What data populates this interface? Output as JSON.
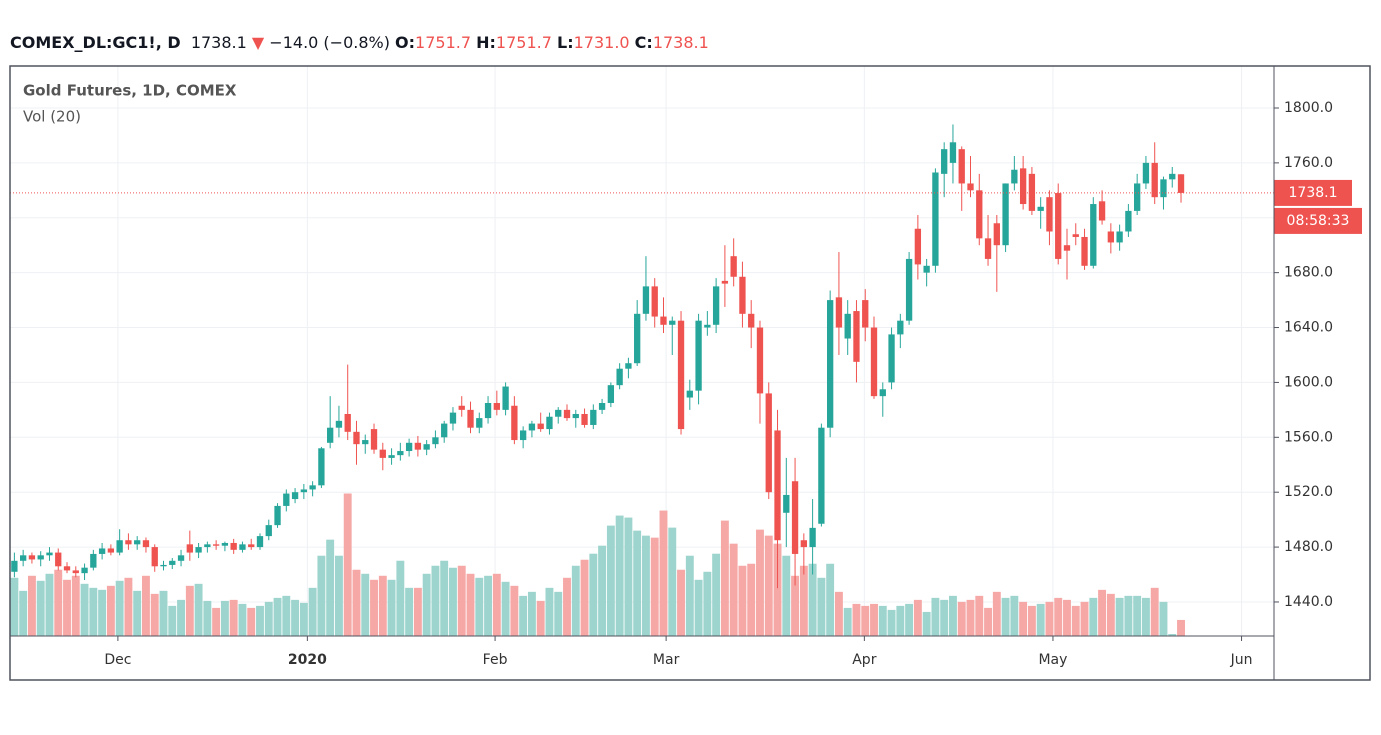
{
  "header": {
    "symbol": "COMEX_DL:GC1!, D",
    "last": "1738.1",
    "arrow": "▼",
    "change": "−14.0 (−0.8%)",
    "ohlc": [
      {
        "label": "O:",
        "value": "1751.7"
      },
      {
        "label": "H:",
        "value": "1751.7"
      },
      {
        "label": "L:",
        "value": "1731.0"
      },
      {
        "label": "C:",
        "value": "1738.1"
      }
    ]
  },
  "chart_data": {
    "type": "candlestick",
    "title": "Gold Futures, 1D, COMEX",
    "volume_label": "Vol (20)",
    "up_color": "#26a69a",
    "down_color": "#ef5350",
    "volume_up_color": "#9dd4ce",
    "volume_down_color": "#f5a8a6",
    "grid": true,
    "last_price": 1738.1,
    "countdown": "08:58:33",
    "xlim": [
      -0.5,
      143.6
    ],
    "ylim": [
      1415.2,
      1830.6
    ],
    "xticks": [
      {
        "value": 11.8,
        "label": "Dec"
      },
      {
        "value": 33.4,
        "label": "2020"
      },
      {
        "value": 54.8,
        "label": "Feb"
      },
      {
        "value": 74.3,
        "label": "Mar"
      },
      {
        "value": 96.9,
        "label": "Apr"
      },
      {
        "value": 118.4,
        "label": "May"
      },
      {
        "value": 139.9,
        "label": "Jun"
      }
    ],
    "yticks": [
      {
        "value": 1440,
        "label": "1440.0"
      },
      {
        "value": 1480,
        "label": "1480.0"
      },
      {
        "value": 1520,
        "label": "1520.0"
      },
      {
        "value": 1560,
        "label": "1560.0"
      },
      {
        "value": 1600,
        "label": "1600.0"
      },
      {
        "value": 1640,
        "label": "1640.0"
      },
      {
        "value": 1680,
        "label": "1680.0"
      },
      {
        "value": 1720,
        "label": "1720.0"
      },
      {
        "value": 1760,
        "label": "1760.0"
      },
      {
        "value": 1800,
        "label": "1800.0"
      }
    ],
    "open": [
      1462,
      1470,
      1474,
      1471,
      1474,
      1476,
      1466,
      1463,
      1461,
      1465,
      1475,
      1479,
      1476,
      1485,
      1482,
      1485,
      1480,
      1466,
      1467,
      1470,
      1482,
      1476,
      1480,
      1482,
      1481,
      1483,
      1478,
      1482,
      1480,
      1488,
      1496,
      1510,
      1515,
      1520,
      1522,
      1525,
      1556,
      1567,
      1577,
      1564,
      1555,
      1566,
      1551,
      1545,
      1547,
      1550,
      1556,
      1551,
      1555,
      1560,
      1570,
      1583,
      1580,
      1567,
      1574,
      1585,
      1580,
      1583,
      1558,
      1565,
      1570,
      1566,
      1575,
      1580,
      1574,
      1577,
      1569,
      1580,
      1585,
      1598,
      1610,
      1614,
      1650,
      1670,
      1648,
      1642,
      1645,
      1589,
      1594,
      1640,
      1642,
      1674,
      1692,
      1677,
      1650,
      1640,
      1592,
      1565,
      1505,
      1528,
      1485,
      1480,
      1497,
      1567,
      1662,
      1632,
      1652,
      1660,
      1640,
      1590,
      1600,
      1635,
      1645,
      1712,
      1680,
      1685,
      1752,
      1760,
      1770,
      1745,
      1740,
      1705,
      1716,
      1700,
      1745,
      1756,
      1752,
      1725,
      1735,
      1738,
      1700,
      1708,
      1706,
      1685,
      1732,
      1710,
      1702,
      1710,
      1725,
      1745,
      1760,
      1735,
      1748,
      1751.7
    ],
    "high": [
      1476,
      1478,
      1476,
      1477,
      1480,
      1479,
      1469,
      1466,
      1468,
      1478,
      1483,
      1482,
      1493,
      1490,
      1488,
      1487,
      1482,
      1470,
      1472,
      1478,
      1492,
      1483,
      1484,
      1485,
      1484,
      1486,
      1484,
      1486,
      1490,
      1500,
      1512,
      1522,
      1523,
      1526,
      1528,
      1553,
      1590,
      1583,
      1613,
      1572,
      1562,
      1570,
      1556,
      1552,
      1556,
      1559,
      1561,
      1558,
      1565,
      1572,
      1582,
      1590,
      1586,
      1578,
      1590,
      1594,
      1600,
      1590,
      1568,
      1572,
      1578,
      1578,
      1582,
      1584,
      1580,
      1581,
      1584,
      1588,
      1600,
      1614,
      1618,
      1660,
      1692,
      1676,
      1662,
      1648,
      1652,
      1602,
      1650,
      1652,
      1676,
      1700,
      1705,
      1688,
      1660,
      1645,
      1600,
      1580,
      1545,
      1545,
      1490,
      1515,
      1570,
      1667,
      1695,
      1660,
      1660,
      1668,
      1648,
      1600,
      1640,
      1650,
      1695,
      1722,
      1690,
      1756,
      1775,
      1788,
      1772,
      1765,
      1752,
      1722,
      1722,
      1745,
      1765,
      1765,
      1757,
      1735,
      1740,
      1745,
      1712,
      1716,
      1712,
      1735,
      1740,
      1716,
      1715,
      1730,
      1752,
      1765,
      1775,
      1750,
      1757,
      1751.7
    ],
    "low": [
      1458,
      1466,
      1468,
      1466,
      1470,
      1463,
      1461,
      1458,
      1456,
      1463,
      1471,
      1474,
      1474,
      1478,
      1478,
      1476,
      1462,
      1463,
      1464,
      1466,
      1470,
      1472,
      1476,
      1478,
      1477,
      1475,
      1476,
      1478,
      1478,
      1485,
      1494,
      1506,
      1512,
      1515,
      1517,
      1523,
      1552,
      1560,
      1558,
      1540,
      1548,
      1548,
      1536,
      1540,
      1543,
      1546,
      1546,
      1547,
      1552,
      1556,
      1565,
      1575,
      1563,
      1563,
      1570,
      1576,
      1576,
      1555,
      1552,
      1560,
      1564,
      1562,
      1570,
      1572,
      1567,
      1567,
      1566,
      1577,
      1582,
      1595,
      1603,
      1612,
      1645,
      1640,
      1636,
      1620,
      1562,
      1580,
      1584,
      1634,
      1636,
      1655,
      1670,
      1640,
      1625,
      1570,
      1515,
      1450,
      1480,
      1452,
      1460,
      1460,
      1495,
      1560,
      1620,
      1620,
      1600,
      1630,
      1588,
      1575,
      1595,
      1625,
      1642,
      1675,
      1670,
      1680,
      1735,
      1745,
      1725,
      1735,
      1700,
      1685,
      1666,
      1695,
      1740,
      1726,
      1722,
      1712,
      1700,
      1686,
      1675,
      1700,
      1682,
      1683,
      1715,
      1694,
      1696,
      1706,
      1722,
      1741,
      1730,
      1726,
      1742,
      1731.0
    ],
    "close": [
      1470,
      1474,
      1471,
      1474,
      1476,
      1466,
      1463,
      1461,
      1465,
      1475,
      1479,
      1476,
      1485,
      1482,
      1485,
      1480,
      1466,
      1467,
      1470,
      1474,
      1476,
      1480,
      1482,
      1481,
      1483,
      1478,
      1482,
      1480,
      1488,
      1496,
      1510,
      1519,
      1520,
      1522,
      1525,
      1552,
      1567,
      1572,
      1564,
      1555,
      1558,
      1551,
      1545,
      1547,
      1550,
      1556,
      1551,
      1555,
      1560,
      1570,
      1578,
      1580,
      1567,
      1574,
      1585,
      1580,
      1597,
      1558,
      1565,
      1570,
      1566,
      1575,
      1580,
      1574,
      1577,
      1569,
      1580,
      1585,
      1598,
      1610,
      1614,
      1650,
      1670,
      1648,
      1642,
      1645,
      1566,
      1594,
      1645,
      1642,
      1670,
      1672,
      1677,
      1650,
      1640,
      1592,
      1520,
      1485,
      1518,
      1475,
      1480,
      1494,
      1567,
      1660,
      1640,
      1650,
      1615,
      1640,
      1590,
      1595,
      1635,
      1645,
      1690,
      1686,
      1685,
      1753,
      1770,
      1775,
      1745,
      1740,
      1705,
      1690,
      1700,
      1745,
      1755,
      1730,
      1725,
      1728,
      1710,
      1690,
      1696,
      1706,
      1685,
      1730,
      1718,
      1702,
      1710,
      1725,
      1745,
      1760,
      1735,
      1748,
      1752,
      1738.1
    ],
    "volume": [
      58,
      45,
      60,
      55,
      62,
      66,
      56,
      60,
      52,
      48,
      46,
      50,
      55,
      58,
      45,
      60,
      42,
      45,
      30,
      36,
      50,
      52,
      35,
      28,
      35,
      36,
      32,
      28,
      30,
      34,
      38,
      40,
      36,
      33,
      48,
      80,
      96,
      80,
      142,
      66,
      62,
      56,
      60,
      56,
      75,
      48,
      48,
      62,
      70,
      75,
      68,
      70,
      62,
      58,
      60,
      62,
      54,
      50,
      40,
      44,
      35,
      48,
      44,
      58,
      70,
      76,
      82,
      90,
      110,
      120,
      118,
      105,
      100,
      98,
      125,
      108,
      66,
      80,
      56,
      64,
      82,
      115,
      92,
      70,
      72,
      106,
      100,
      92,
      80,
      60,
      70,
      72,
      58,
      72,
      44,
      28,
      32,
      30,
      32,
      30,
      26,
      30,
      32,
      36,
      24,
      38,
      36,
      40,
      34,
      36,
      40,
      28,
      44,
      38,
      40,
      34,
      30,
      32,
      34,
      38,
      36,
      30,
      34,
      38,
      46,
      42,
      38,
      40,
      40,
      38,
      48,
      34,
      2,
      16
    ]
  }
}
